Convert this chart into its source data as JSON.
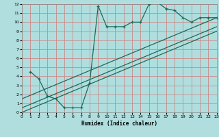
{
  "title": "",
  "xlabel": "Humidex (Indice chaleur)",
  "bg_color": "#b0dede",
  "grid_color": "#cc8888",
  "line_color": "#1a6b5a",
  "xlim": [
    0,
    23
  ],
  "ylim": [
    0,
    12
  ],
  "xticks": [
    0,
    1,
    2,
    3,
    4,
    5,
    6,
    7,
    8,
    9,
    10,
    11,
    12,
    13,
    14,
    15,
    16,
    17,
    18,
    19,
    20,
    21,
    22,
    23
  ],
  "yticks": [
    0,
    1,
    2,
    3,
    4,
    5,
    6,
    7,
    8,
    9,
    10,
    11,
    12
  ],
  "main_x": [
    1,
    2,
    3,
    4,
    5,
    6,
    7,
    8,
    9,
    10,
    11,
    12,
    13,
    14,
    15,
    16,
    17,
    18,
    19,
    20,
    21,
    22,
    23
  ],
  "main_y": [
    4.5,
    3.7,
    1.8,
    1.5,
    0.5,
    0.5,
    0.5,
    3.3,
    11.8,
    9.5,
    9.5,
    9.5,
    10.0,
    10.0,
    12.0,
    12.2,
    11.5,
    11.3,
    10.5,
    10.0,
    10.5,
    10.5,
    10.5
  ],
  "diag_lines": [
    {
      "x": [
        0,
        23
      ],
      "y": [
        0.0,
        9.0
      ]
    },
    {
      "x": [
        0,
        23
      ],
      "y": [
        0.5,
        9.5
      ]
    },
    {
      "x": [
        0,
        23
      ],
      "y": [
        1.5,
        10.5
      ]
    }
  ]
}
